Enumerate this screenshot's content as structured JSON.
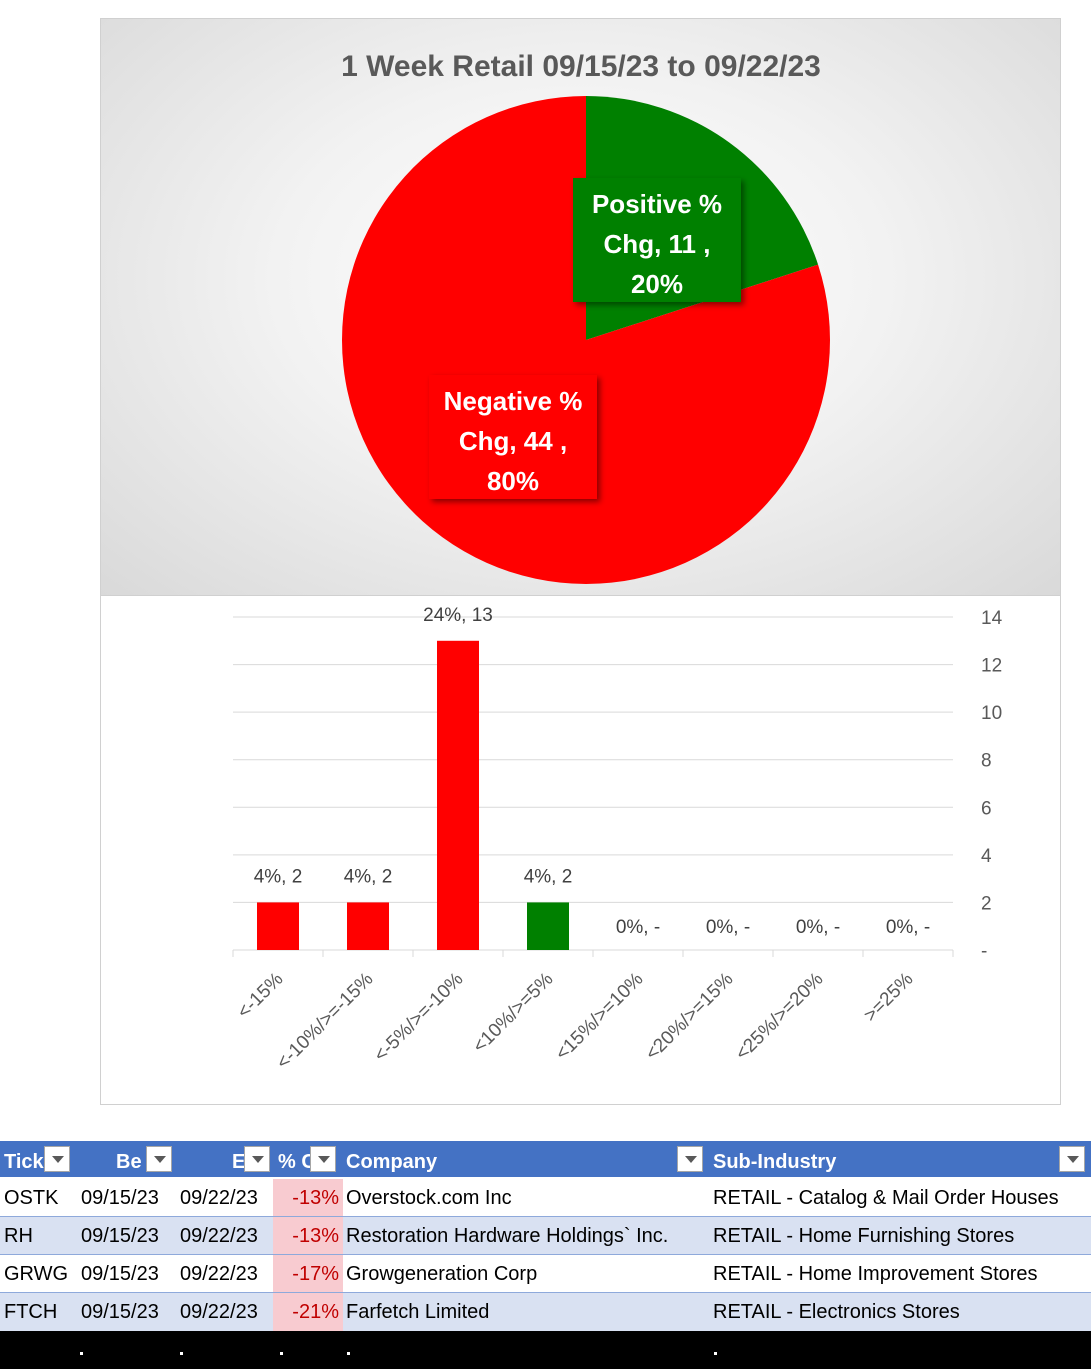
{
  "chart_data": [
    {
      "type": "pie",
      "title": "1 Week Retail 09/15/23 to 09/22/23",
      "slices": [
        {
          "name": "Positive % Chg",
          "value": 11,
          "percent": "20%",
          "label_lines": [
            "Positive %",
            "Chg,  11 ,",
            "20%"
          ],
          "color": "#008000"
        },
        {
          "name": "Negative % Chg",
          "value": 44,
          "percent": "80%",
          "label_lines": [
            "Negative %",
            "Chg,  44 ,",
            "80%"
          ],
          "color": "#ff0000"
        }
      ]
    },
    {
      "type": "bar",
      "categories": [
        "<-15%",
        "<-10%/>=-15%",
        "<-5%/>=-10%",
        "<10%/>=5%",
        "<15%/>=10%",
        "<20%/>=15%",
        "<25%/>=20%",
        ">=25%"
      ],
      "values": [
        2,
        2,
        13,
        2,
        0,
        0,
        0,
        0
      ],
      "data_labels": [
        "4%,  2",
        "4%,  2",
        "24%,  13",
        "4%,  2",
        "0%,  -",
        "0%,  -",
        "0%,  -",
        "0%,  -"
      ],
      "colors": [
        "#ff0000",
        "#ff0000",
        "#ff0000",
        "#008000",
        "#ff0000",
        "#ff0000",
        "#ff0000",
        "#ff0000"
      ],
      "ylim": [
        0,
        14
      ],
      "y_ticks": [
        "-",
        "2",
        "4",
        "6",
        "8",
        "10",
        "12",
        "14"
      ],
      "y_axis_side": "right",
      "grid": true
    }
  ],
  "table": {
    "columns": [
      "Tick",
      "Be",
      "E",
      "% C",
      "Company",
      "Sub-Industry"
    ],
    "rows": [
      {
        "ticker": "OSTK",
        "begin": "09/15/23",
        "end": "09/22/23",
        "pct": "-13%",
        "company": "Overstock.com Inc",
        "sub_industry": "RETAIL - Catalog & Mail Order Houses"
      },
      {
        "ticker": "RH",
        "begin": "09/15/23",
        "end": "09/22/23",
        "pct": "-13%",
        "company": "Restoration Hardware Holdings` Inc.",
        "sub_industry": "RETAIL - Home Furnishing Stores"
      },
      {
        "ticker": "GRWG",
        "begin": "09/15/23",
        "end": "09/22/23",
        "pct": "-17%",
        "company": "Growgeneration Corp",
        "sub_industry": "RETAIL - Home Improvement Stores"
      },
      {
        "ticker": "FTCH",
        "begin": "09/15/23",
        "end": "09/22/23",
        "pct": "-21%",
        "company": "Farfetch Limited",
        "sub_industry": "RETAIL - Electronics Stores"
      }
    ]
  },
  "colors": {
    "header_bg": "#4472c4",
    "band_bg": "#d9e1f2",
    "negative_fill": "#f8cbd0",
    "negative_text": "#c00000"
  }
}
